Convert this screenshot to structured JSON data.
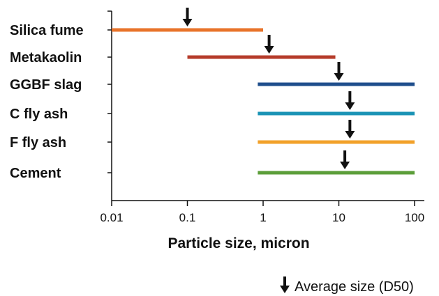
{
  "chart_data": {
    "type": "range",
    "xscale": "log",
    "xlim": [
      0.01,
      100
    ],
    "xticks": [
      0.01,
      0.1,
      1,
      10,
      100
    ],
    "xtick_labels": [
      "0.01",
      "0.1",
      "1",
      "10",
      "100"
    ],
    "xlabel": "Particle size, micron",
    "categories": [
      "Silica fume",
      "Metakaolin",
      "GGBF slag",
      "C fly ash",
      "F fly ash",
      "Cement"
    ],
    "series": [
      {
        "category": "Silica fume",
        "min": 0.01,
        "max": 1.0,
        "d50": 0.1,
        "color": "#e8732a"
      },
      {
        "category": "Metakaolin",
        "min": 0.1,
        "max": 9.0,
        "d50": 1.2,
        "color": "#b53b2a"
      },
      {
        "category": "GGBF slag",
        "min": 0.85,
        "max": 100,
        "d50": 10,
        "color": "#1f4e8c"
      },
      {
        "category": "C fly ash",
        "min": 0.85,
        "max": 100,
        "d50": 14,
        "color": "#1a93b5"
      },
      {
        "category": "F fly ash",
        "min": 0.85,
        "max": 100,
        "d50": 14,
        "color": "#f2a12a"
      },
      {
        "category": "Cement",
        "min": 0.85,
        "max": 100,
        "d50": 12,
        "color": "#5c9e3a"
      }
    ],
    "legend": {
      "label": "Average size (D50)",
      "placement": "bottom-right",
      "icon": "down-arrow-icon"
    },
    "grid": false
  }
}
